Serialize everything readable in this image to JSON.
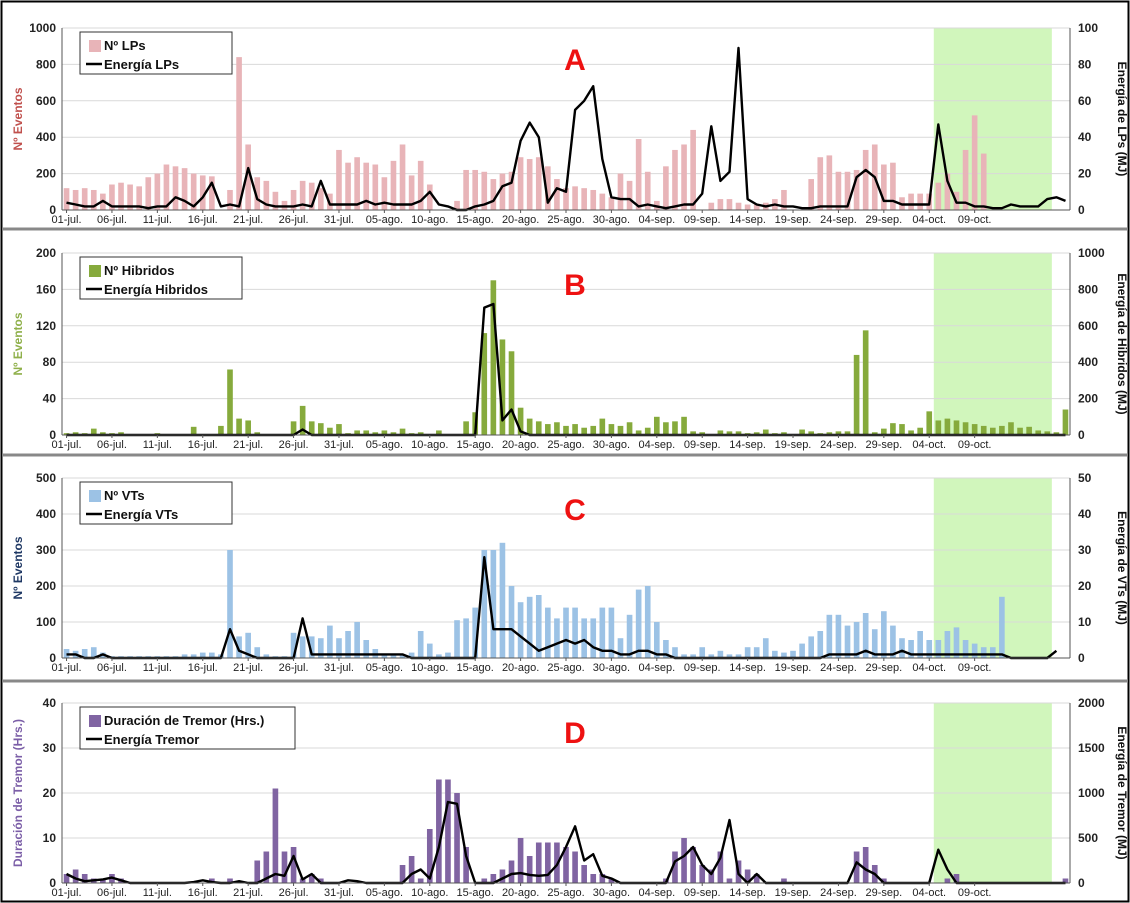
{
  "chart_data": [
    {
      "type": "bar",
      "panel_letter": "A",
      "y_left_label": "Nº Eventos",
      "y_right_label": "Energía de LPs (MJ)",
      "bar_color": "#e8b4b8",
      "label_color": "#c0504d",
      "ylim_left": [
        0,
        1000
      ],
      "ylim_right": [
        0,
        100
      ],
      "yticks_left": [
        "0",
        "200",
        "400",
        "600",
        "800",
        "1000"
      ],
      "yticks_right": [
        "0",
        "20",
        "40",
        "60",
        "80",
        "100"
      ],
      "xticks": [
        "01-jul.",
        "06-jul.",
        "11-jul.",
        "16-jul.",
        "21-jul.",
        "26-jul.",
        "31-jul.",
        "05-ago.",
        "10-ago.",
        "15-ago.",
        "20-ago.",
        "25-ago.",
        "30-ago.",
        "04-sep.",
        "09-sep.",
        "14-sep.",
        "19-sep.",
        "24-sep.",
        "29-sep.",
        "04-oct.",
        "09-oct."
      ],
      "legend": [
        "Nº LPs",
        "Energía LPs"
      ],
      "legend_placement": "top-left",
      "grid": true,
      "highlight": {
        "start_day": 96,
        "end_day": 109,
        "color": "#c9f5b0"
      },
      "series": [
        {
          "name": "Nº LPs",
          "kind": "bar",
          "values": [
            120,
            110,
            120,
            110,
            90,
            140,
            150,
            140,
            130,
            180,
            200,
            250,
            240,
            230,
            200,
            190,
            185,
            0,
            110,
            840,
            360,
            180,
            160,
            100,
            50,
            110,
            160,
            150,
            120,
            90,
            330,
            260,
            290,
            260,
            250,
            180,
            270,
            360,
            190,
            270,
            140,
            0,
            0,
            50,
            220,
            220,
            210,
            170,
            200,
            210,
            290,
            280,
            290,
            240,
            170,
            120,
            130,
            120,
            110,
            90,
            70,
            200,
            160,
            390,
            210,
            50,
            240,
            330,
            360,
            440,
            0,
            40,
            60,
            60,
            40,
            30,
            30,
            40,
            60,
            110,
            0,
            0,
            170,
            290,
            300,
            210,
            210,
            220,
            330,
            360,
            250,
            260,
            70,
            90,
            90,
            90,
            150,
            200,
            100,
            330,
            520,
            310
          ]
        },
        {
          "name": "Energía LPs",
          "kind": "line",
          "values": [
            4,
            3,
            2,
            2,
            5,
            2,
            2,
            2,
            2,
            1,
            2,
            2,
            7,
            5,
            2,
            7,
            15,
            2,
            3,
            2,
            23,
            6,
            3,
            2,
            2,
            2,
            3,
            2,
            16,
            3,
            3,
            3,
            3,
            5,
            3,
            4,
            3,
            3,
            3,
            5,
            10,
            3,
            2,
            0,
            0,
            2,
            3,
            5,
            13,
            15,
            38,
            48,
            40,
            4,
            12,
            10,
            55,
            60,
            68,
            28,
            7,
            6,
            6,
            2,
            3,
            2,
            1,
            2,
            3,
            3,
            9,
            46,
            16,
            21,
            89,
            6,
            3,
            2,
            3,
            2,
            2,
            1,
            1,
            2,
            2,
            2,
            2,
            18,
            22,
            18,
            5,
            5,
            3,
            3,
            3,
            3,
            47,
            16,
            4,
            4,
            2,
            2,
            1,
            1,
            3,
            2,
            2,
            2,
            6,
            7,
            5
          ]
        }
      ]
    },
    {
      "type": "bar",
      "panel_letter": "B",
      "y_left_label": "Nº Eventos",
      "y_right_label": "Energía de Hibridos (MJ)",
      "bar_color": "#86aa3c",
      "label_color": "#8fb04a",
      "ylim_left": [
        0,
        200
      ],
      "ylim_right": [
        0,
        1000
      ],
      "yticks_left": [
        "0",
        "40",
        "80",
        "120",
        "160",
        "200"
      ],
      "yticks_right": [
        "0",
        "200",
        "400",
        "600",
        "800",
        "1000"
      ],
      "xticks": [
        "01-jul.",
        "06-jul.",
        "11-jul.",
        "16-jul.",
        "21-jul.",
        "26-jul.",
        "31-jul.",
        "05-ago.",
        "10-ago.",
        "15-ago.",
        "20-ago.",
        "25-ago.",
        "30-ago.",
        "04-sep.",
        "09-sep.",
        "14-sep.",
        "19-sep.",
        "24-sep.",
        "29-sep.",
        "04-oct.",
        "09-oct."
      ],
      "legend": [
        "Nº Hibridos",
        "Energía Hibridos"
      ],
      "legend_placement": "top-left",
      "grid": true,
      "highlight": {
        "start_day": 96,
        "end_day": 109,
        "color": "#c9f5b0"
      },
      "series": [
        {
          "name": "Nº Hibridos",
          "kind": "bar",
          "values": [
            2,
            3,
            2,
            7,
            3,
            2,
            3,
            1,
            1,
            1,
            2,
            1,
            1,
            1,
            9,
            1,
            1,
            10,
            72,
            18,
            16,
            3,
            1,
            1,
            1,
            15,
            32,
            15,
            13,
            8,
            12,
            2,
            5,
            5,
            3,
            5,
            3,
            7,
            2,
            3,
            1,
            5,
            1,
            1,
            15,
            25,
            112,
            170,
            105,
            92,
            30,
            18,
            15,
            12,
            14,
            10,
            12,
            8,
            10,
            18,
            12,
            10,
            14,
            5,
            8,
            20,
            14,
            15,
            20,
            4,
            3,
            1,
            5,
            4,
            4,
            2,
            3,
            6,
            2,
            3,
            1,
            6,
            4,
            2,
            3,
            4,
            4,
            88,
            115,
            3,
            7,
            13,
            12,
            5,
            8,
            26,
            16,
            18,
            16,
            14,
            12,
            10,
            8,
            10,
            14,
            8,
            9,
            5,
            4,
            3,
            28
          ]
        },
        {
          "name": "Energía Hibridos",
          "kind": "line",
          "values": [
            0,
            0,
            0,
            0,
            0,
            0,
            0,
            0,
            0,
            0,
            0,
            0,
            0,
            0,
            0,
            0,
            0,
            0,
            0,
            0,
            0,
            0,
            0,
            0,
            0,
            0,
            30,
            0,
            0,
            0,
            0,
            0,
            0,
            0,
            0,
            0,
            0,
            0,
            0,
            0,
            0,
            0,
            0,
            0,
            0,
            0,
            700,
            720,
            80,
            140,
            20,
            0,
            0,
            0,
            0,
            0,
            0,
            0,
            0,
            0,
            0,
            0,
            0,
            0,
            0,
            0,
            0,
            0,
            0,
            0,
            0,
            0,
            0,
            0,
            0,
            0,
            0,
            0,
            0,
            0,
            0,
            0,
            0,
            0,
            0,
            0,
            0,
            0,
            0,
            0,
            0,
            0,
            0,
            0,
            0,
            0,
            0,
            0,
            0,
            0,
            0,
            0,
            0,
            0,
            0,
            0,
            0,
            0,
            0,
            0,
            0
          ]
        }
      ]
    },
    {
      "type": "bar",
      "panel_letter": "C",
      "y_left_label": "Nº Eventos",
      "y_right_label": "Energía de VTs (MJ)",
      "bar_color": "#9cc2e5",
      "label_color": "#1f3864",
      "ylim_left": [
        0,
        500
      ],
      "ylim_right": [
        0,
        50
      ],
      "yticks_left": [
        "0",
        "100",
        "200",
        "300",
        "400",
        "500"
      ],
      "yticks_right": [
        "0",
        "10",
        "20",
        "30",
        "40",
        "50"
      ],
      "xticks": [
        "01-jul.",
        "06-jul.",
        "11-jul.",
        "16-jul.",
        "21-jul.",
        "26-jul.",
        "31-jul.",
        "05-ago.",
        "10-ago.",
        "15-ago.",
        "20-ago.",
        "25-ago.",
        "30-ago.",
        "04-sep.",
        "09-sep.",
        "14-sep.",
        "19-sep.",
        "24-sep.",
        "29-sep.",
        "04-oct.",
        "09-oct."
      ],
      "legend": [
        "Nº VTs",
        "Energía VTs"
      ],
      "legend_placement": "top-left",
      "grid": true,
      "highlight": {
        "start_day": 96,
        "end_day": 109,
        "color": "#c9f5b0"
      },
      "series": [
        {
          "name": "Nº VTs",
          "kind": "bar",
          "values": [
            25,
            20,
            25,
            30,
            15,
            5,
            5,
            5,
            5,
            5,
            5,
            5,
            5,
            10,
            10,
            15,
            15,
            10,
            300,
            60,
            70,
            30,
            10,
            5,
            5,
            70,
            60,
            60,
            55,
            90,
            55,
            75,
            100,
            50,
            25,
            10,
            10,
            10,
            15,
            75,
            40,
            10,
            15,
            105,
            110,
            140,
            300,
            300,
            320,
            200,
            155,
            170,
            175,
            140,
            110,
            140,
            140,
            110,
            110,
            140,
            140,
            55,
            120,
            190,
            200,
            100,
            50,
            30,
            10,
            10,
            30,
            10,
            20,
            10,
            10,
            30,
            30,
            55,
            20,
            15,
            20,
            40,
            60,
            75,
            120,
            120,
            90,
            100,
            125,
            80,
            130,
            90,
            55,
            50,
            75,
            50,
            50,
            75,
            85,
            50,
            40,
            30,
            30,
            170
          ]
        },
        {
          "name": "Energía VTs",
          "kind": "line",
          "values": [
            1,
            1,
            0,
            0,
            1,
            0,
            0,
            0,
            0,
            0,
            0,
            0,
            0,
            0,
            0,
            0,
            0,
            0,
            8,
            2,
            1,
            0,
            0,
            0,
            0,
            0,
            11,
            1,
            1,
            1,
            1,
            1,
            1,
            1,
            1,
            1,
            1,
            1,
            0,
            0,
            0,
            0,
            0,
            0,
            0,
            0,
            28,
            8,
            8,
            8,
            6,
            4,
            2,
            3,
            4,
            5,
            4,
            5,
            3,
            2,
            2,
            1,
            1,
            2,
            2,
            1,
            1,
            0,
            0,
            0,
            0,
            0,
            0,
            0,
            0,
            0,
            0,
            0,
            0,
            0,
            0,
            0,
            0,
            0,
            1,
            1,
            1,
            1,
            2,
            1,
            1,
            1,
            2,
            1,
            1,
            1,
            1,
            1,
            1,
            1,
            1,
            1,
            1,
            1,
            0,
            0,
            0,
            0,
            0,
            2
          ]
        }
      ]
    },
    {
      "type": "bar",
      "panel_letter": "D",
      "y_left_label": "Duración de Tremor (Hrs.)",
      "y_right_label": "Energía de Tremor (MJ)",
      "bar_color": "#8064a2",
      "label_color": "#7b5ea7",
      "ylim_left": [
        0,
        40
      ],
      "ylim_right": [
        0,
        2000
      ],
      "yticks_left": [
        "0",
        "10",
        "20",
        "30",
        "40"
      ],
      "yticks_right": [
        "0",
        "500",
        "1000",
        "1500",
        "2000"
      ],
      "xticks": [
        "01-jul.",
        "06-jul.",
        "11-jul.",
        "16-jul.",
        "21-jul.",
        "26-jul.",
        "31-jul.",
        "05-ago.",
        "10-ago.",
        "15-ago.",
        "20-ago.",
        "25-ago.",
        "30-ago.",
        "04-sep.",
        "09-sep.",
        "14-sep.",
        "19-sep.",
        "24-sep.",
        "29-sep.",
        "04-oct.",
        "09-oct."
      ],
      "legend": [
        "Duración de Tremor (Hrs.)",
        "Energía Tremor"
      ],
      "legend_placement": "top-left",
      "grid": true,
      "highlight": {
        "start_day": 96,
        "end_day": 109,
        "color": "#c9f5b0"
      },
      "series": [
        {
          "name": "Duración de Tremor (Hrs.)",
          "kind": "bar",
          "values": [
            2,
            3,
            2,
            1,
            1,
            2,
            1,
            0,
            0,
            0,
            0,
            0,
            0,
            0,
            0,
            0,
            1,
            0,
            1,
            0,
            0,
            5,
            7,
            21,
            7,
            8,
            1,
            2,
            1,
            0,
            0,
            0,
            0,
            0,
            0,
            0,
            0,
            4,
            6,
            1,
            12,
            23,
            23,
            20,
            8,
            0,
            1,
            2,
            3,
            5,
            10,
            6,
            9,
            9,
            9,
            8,
            7,
            4,
            2,
            2,
            1,
            0,
            0,
            0,
            0,
            0,
            1,
            7,
            10,
            8,
            4,
            3,
            7,
            1,
            5,
            3,
            2,
            0,
            0,
            1,
            0,
            0,
            0,
            0,
            0,
            0,
            0,
            7,
            8,
            4,
            1,
            0,
            0,
            0,
            0,
            0,
            0,
            1,
            2,
            0,
            0,
            0,
            0,
            0,
            0,
            0,
            0,
            0,
            0,
            0,
            1
          ]
        },
        {
          "name": "Energía Tremor",
          "kind": "line",
          "values": [
            100,
            50,
            20,
            30,
            40,
            60,
            30,
            0,
            0,
            0,
            0,
            0,
            0,
            0,
            10,
            30,
            10,
            0,
            0,
            20,
            0,
            0,
            50,
            100,
            80,
            300,
            40,
            100,
            0,
            0,
            0,
            30,
            20,
            0,
            0,
            0,
            0,
            0,
            100,
            150,
            50,
            400,
            900,
            880,
            300,
            0,
            0,
            0,
            50,
            100,
            110,
            90,
            80,
            90,
            200,
            400,
            630,
            250,
            320,
            80,
            50,
            0,
            0,
            0,
            0,
            0,
            0,
            240,
            300,
            400,
            200,
            100,
            280,
            700,
            100,
            0,
            100,
            0,
            0,
            0,
            0,
            0,
            0,
            0,
            0,
            0,
            0,
            230,
            150,
            100,
            0,
            0,
            0,
            0,
            0,
            0,
            370,
            150,
            0,
            0,
            0,
            0,
            0,
            0,
            0,
            0,
            0,
            0,
            0,
            0,
            0
          ]
        }
      ]
    }
  ]
}
